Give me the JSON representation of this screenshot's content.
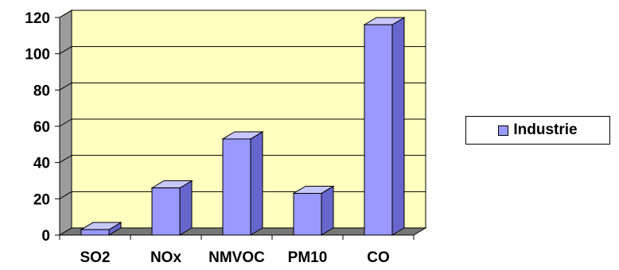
{
  "chart_data": {
    "type": "bar",
    "categories": [
      "SO2",
      "NOx",
      "NMVOC",
      "PM10",
      "CO"
    ],
    "series": [
      {
        "name": "Industrie",
        "values": [
          3,
          26,
          53,
          23,
          116
        ]
      }
    ],
    "yticks": [
      "0",
      "20",
      "40",
      "60",
      "80",
      "100",
      "120"
    ],
    "ylim": [
      0,
      120
    ],
    "title": "",
    "xlabel": "",
    "ylabel": "",
    "grid": true,
    "legend_position": "right",
    "style": "3d-bar",
    "colors": {
      "bar_front": "#9999ff",
      "bar_top": "#c8c8ff",
      "bar_side": "#6666cc",
      "plot_wall": "#ffffc0",
      "side_wall": "#9c9c9c",
      "floor": "#777777"
    }
  }
}
